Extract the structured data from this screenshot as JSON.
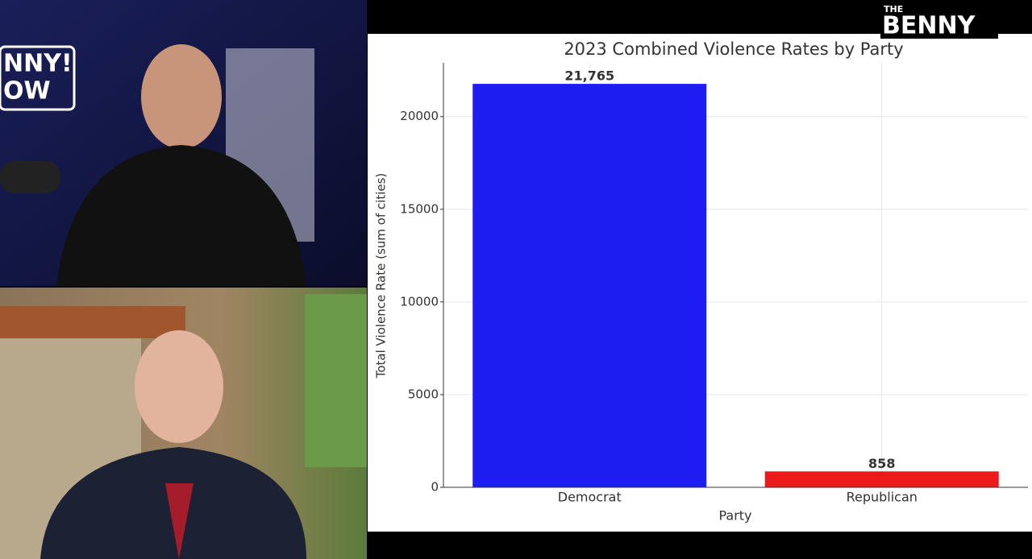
{
  "chart_data": {
    "type": "bar",
    "title": "2023 Combined Violence Rates by Party",
    "x_label": "Party",
    "y_label": "Total Violence Rate (sum of cities)",
    "categories": [
      "Democrat",
      "Republican"
    ],
    "values": [
      21765,
      858
    ],
    "value_labels": [
      "21,765",
      "858"
    ],
    "colors": [
      "#1d1df2",
      "#ec1a1a"
    ],
    "ylim": [
      0,
      22900
    ],
    "yticks": [
      0,
      5000,
      10000,
      15000,
      20000
    ],
    "grid": true
  },
  "overlay": {
    "logo_top": "THE",
    "logo": "BENNY",
    "side_logo": [
      "NNY!",
      "OW"
    ]
  }
}
